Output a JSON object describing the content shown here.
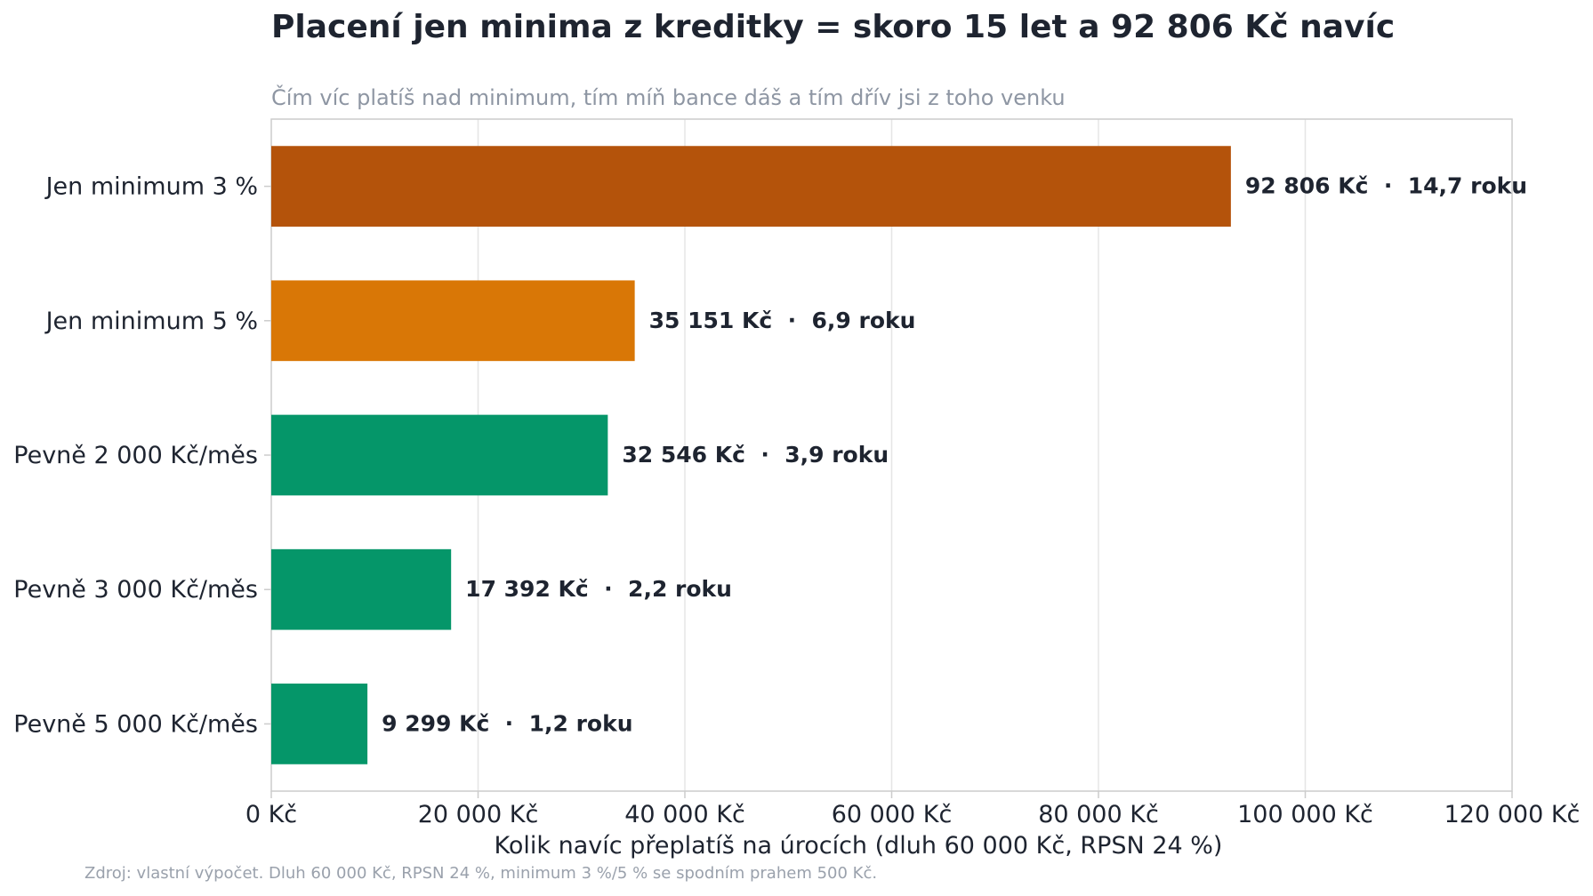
{
  "chart_data": {
    "type": "bar",
    "orientation": "horizontal",
    "title": "Placení jen minima z kreditky = skoro 15 let a 92 806 Kč navíc",
    "subtitle": "Čím víc platíš nad minimum, tím míň bance dáš a tím dřív jsi z toho venku",
    "xlabel": "Kolik navíc přeplatíš na úrocích (dluh 60 000 Kč, RPSN 24 %)",
    "ylabel": "",
    "source": "Zdroj: vlastní výpočet. Dluh 60 000 Kč, RPSN 24 %, minimum 3 %/5 % se spodním prahem 500 Kč.",
    "xlim": [
      0,
      120000
    ],
    "grid": true,
    "x_ticks": [
      0,
      20000,
      40000,
      60000,
      80000,
      100000,
      120000
    ],
    "x_tick_labels": [
      "0 Kč",
      "20 000 Kč",
      "40 000 Kč",
      "60 000 Kč",
      "80 000 Kč",
      "100 000 Kč",
      "120 000 Kč"
    ],
    "categories": [
      "Jen minimum 3 %",
      "Jen minimum 5 %",
      "Pevně 2 000 Kč/měs",
      "Pevně 3 000 Kč/měs",
      "Pevně 5 000 Kč/měs"
    ],
    "values": [
      92806,
      35151,
      32546,
      17392,
      9299
    ],
    "years": [
      14.7,
      6.9,
      3.9,
      2.2,
      1.2
    ],
    "data_labels": [
      "92 806 Kč  ·  14,7 roku",
      "35 151 Kč  ·  6,9 roku",
      "32 546 Kč  ·  3,9 roku",
      "17 392 Kč  ·  2,2 roku",
      "9 299 Kč  ·  1,2 roku"
    ],
    "colors": [
      "#b4530b",
      "#d97706",
      "#059669",
      "#059669",
      "#059669"
    ],
    "grid_color": "#e5e5e5",
    "axis_color": "#cccccc"
  }
}
